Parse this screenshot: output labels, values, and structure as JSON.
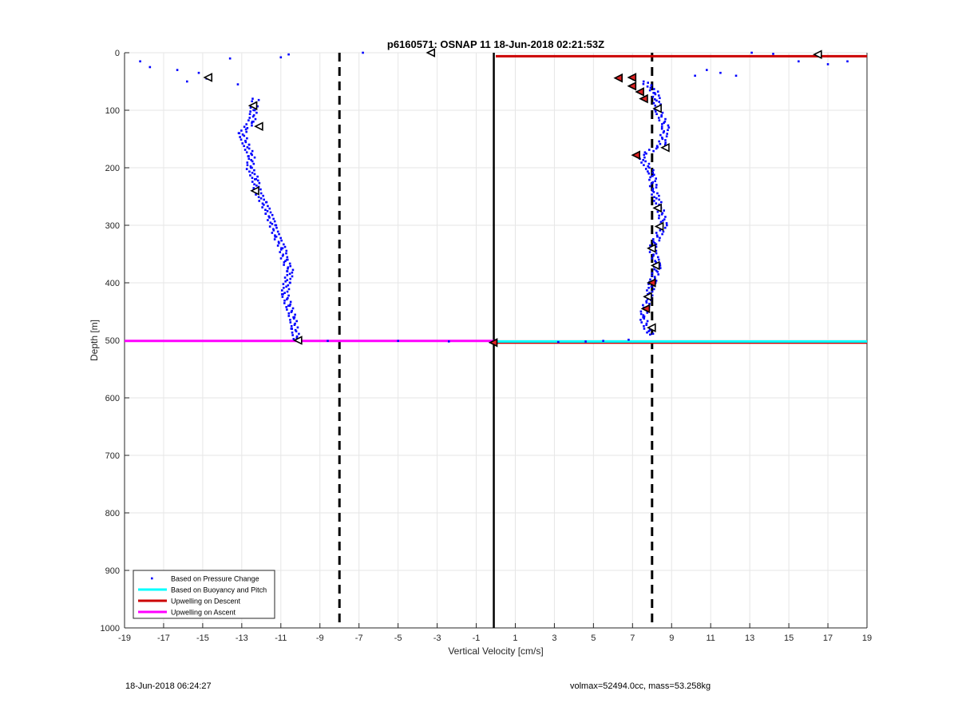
{
  "footer": {
    "timestamp": "18-Jun-2018 06:24:27",
    "info": "volmax=52494.0cc, mass=53.258kg"
  },
  "chart_data": {
    "type": "scatter",
    "title": "p6160571: OSNAP 11 18-Jun-2018 02:21:53Z",
    "xlabel": "Vertical Velocity [cm/s]",
    "ylabel": "Depth [m]",
    "xlim": [
      -19,
      19
    ],
    "ylim": [
      1000,
      0
    ],
    "y_reversed": true,
    "grid": true,
    "xticks": [
      -19,
      -17,
      -15,
      -13,
      -11,
      -9,
      -7,
      -5,
      -3,
      -1,
      1,
      3,
      5,
      7,
      9,
      11,
      13,
      15,
      17,
      19
    ],
    "yticks": [
      0,
      100,
      200,
      300,
      400,
      500,
      600,
      700,
      800,
      900,
      1000
    ],
    "legend": {
      "position": "bottom-left",
      "entries": [
        {
          "label": "Based on Pressure Change",
          "color": "#0000ff",
          "marker": "dot"
        },
        {
          "label": "Based on Buoyancy and Pitch",
          "color": "#00ffff",
          "marker": "line"
        },
        {
          "label": "Upwelling on Descent",
          "color": "#cc0000",
          "marker": "line"
        },
        {
          "label": "Upwelling on Ascent",
          "color": "#ff00ff",
          "marker": "line"
        }
      ]
    },
    "reference_lines": {
      "vertical_dashed": [
        -8,
        8
      ],
      "vertical_solid": [
        -0.1
      ],
      "color": "#000000"
    },
    "series": [
      {
        "name": "Based on Pressure Change",
        "color": "#0000ff",
        "descent_profile": [
          {
            "v": -12.3,
            "d": 80
          },
          {
            "v": -12.4,
            "d": 100
          },
          {
            "v": -12.5,
            "d": 120
          },
          {
            "v": -13.0,
            "d": 140
          },
          {
            "v": -12.8,
            "d": 160
          },
          {
            "v": -12.5,
            "d": 180
          },
          {
            "v": -12.6,
            "d": 200
          },
          {
            "v": -12.3,
            "d": 220
          },
          {
            "v": -12.2,
            "d": 240
          },
          {
            "v": -11.9,
            "d": 260
          },
          {
            "v": -11.6,
            "d": 280
          },
          {
            "v": -11.4,
            "d": 300
          },
          {
            "v": -11.2,
            "d": 320
          },
          {
            "v": -10.9,
            "d": 340
          },
          {
            "v": -10.8,
            "d": 360
          },
          {
            "v": -10.5,
            "d": 380
          },
          {
            "v": -10.7,
            "d": 400
          },
          {
            "v": -10.8,
            "d": 420
          },
          {
            "v": -10.6,
            "d": 440
          },
          {
            "v": -10.4,
            "d": 460
          },
          {
            "v": -10.3,
            "d": 480
          },
          {
            "v": -10.2,
            "d": 500
          }
        ],
        "ascent_profile": [
          {
            "v": 7.6,
            "d": 50
          },
          {
            "v": 8.2,
            "d": 70
          },
          {
            "v": 8.3,
            "d": 100
          },
          {
            "v": 8.7,
            "d": 130
          },
          {
            "v": 8.5,
            "d": 160
          },
          {
            "v": 7.4,
            "d": 180
          },
          {
            "v": 8.0,
            "d": 210
          },
          {
            "v": 8.1,
            "d": 240
          },
          {
            "v": 8.4,
            "d": 270
          },
          {
            "v": 8.6,
            "d": 300
          },
          {
            "v": 8.0,
            "d": 340
          },
          {
            "v": 8.3,
            "d": 370
          },
          {
            "v": 8.0,
            "d": 400
          },
          {
            "v": 7.8,
            "d": 430
          },
          {
            "v": 7.5,
            "d": 460
          },
          {
            "v": 7.9,
            "d": 490
          }
        ],
        "scatter": [
          {
            "v": -18.2,
            "d": 15
          },
          {
            "v": -17.7,
            "d": 25
          },
          {
            "v": -16.3,
            "d": 30
          },
          {
            "v": -15.8,
            "d": 50
          },
          {
            "v": -15.2,
            "d": 35
          },
          {
            "v": -14.8,
            "d": 45
          },
          {
            "v": -13.6,
            "d": 10
          },
          {
            "v": -13.2,
            "d": 55
          },
          {
            "v": -11.0,
            "d": 8
          },
          {
            "v": -10.6,
            "d": 3
          },
          {
            "v": -6.8,
            "d": 0
          },
          {
            "v": 10.2,
            "d": 40
          },
          {
            "v": 10.8,
            "d": 30
          },
          {
            "v": 11.5,
            "d": 35
          },
          {
            "v": 12.3,
            "d": 40
          },
          {
            "v": 13.1,
            "d": 0
          },
          {
            "v": 14.2,
            "d": 2
          },
          {
            "v": 15.5,
            "d": 15
          },
          {
            "v": 17.0,
            "d": 20
          },
          {
            "v": 18.0,
            "d": 15
          },
          {
            "v": -8.6,
            "d": 501
          },
          {
            "v": -5.0,
            "d": 501
          },
          {
            "v": -2.4,
            "d": 502
          },
          {
            "v": 3.2,
            "d": 503
          },
          {
            "v": 4.6,
            "d": 502
          },
          {
            "v": 5.5,
            "d": 501
          },
          {
            "v": 6.8,
            "d": 499
          }
        ]
      },
      {
        "name": "Upwelling on Descent",
        "color": "#cc0000",
        "points": [
          {
            "v": 0.0,
            "d": 6
          },
          {
            "v": 19.0,
            "d": 6
          },
          {
            "v": 0.0,
            "d": 504
          },
          {
            "v": 19.0,
            "d": 504
          }
        ]
      },
      {
        "name": "Upwelling on Ascent",
        "color": "#ff00ff",
        "points": [
          {
            "v": -19.0,
            "d": 501
          },
          {
            "v": 0.0,
            "d": 501
          }
        ]
      },
      {
        "name": "Based on Buoyancy and Pitch",
        "color": "#00ffff",
        "points": [
          {
            "v": 0.0,
            "d": 502
          },
          {
            "v": 19.0,
            "d": 502
          }
        ]
      }
    ],
    "triangle_markers": {
      "outline_color": "#000000",
      "descent": [
        {
          "v": -14.7,
          "d": 43
        },
        {
          "v": -12.4,
          "d": 92
        },
        {
          "v": -12.1,
          "d": 128
        },
        {
          "v": -12.3,
          "d": 240
        },
        {
          "v": -10.1,
          "d": 500
        },
        {
          "v": -3.3,
          "d": 0
        }
      ],
      "ascent_red": [
        {
          "v": 6.3,
          "d": 44
        },
        {
          "v": 7.0,
          "d": 43
        },
        {
          "v": 7.0,
          "d": 58
        },
        {
          "v": 7.4,
          "d": 68
        },
        {
          "v": 7.6,
          "d": 80
        },
        {
          "v": 7.2,
          "d": 178
        },
        {
          "v": 8.0,
          "d": 400
        },
        {
          "v": 7.7,
          "d": 445
        },
        {
          "v": -0.1,
          "d": 504
        }
      ],
      "ascent_white": [
        {
          "v": 16.5,
          "d": 3
        },
        {
          "v": 8.3,
          "d": 97
        },
        {
          "v": 8.7,
          "d": 165
        },
        {
          "v": 8.3,
          "d": 270
        },
        {
          "v": 8.4,
          "d": 302
        },
        {
          "v": 8.0,
          "d": 340
        },
        {
          "v": 8.2,
          "d": 370
        },
        {
          "v": 7.8,
          "d": 424
        },
        {
          "v": 8.0,
          "d": 478
        }
      ]
    }
  }
}
